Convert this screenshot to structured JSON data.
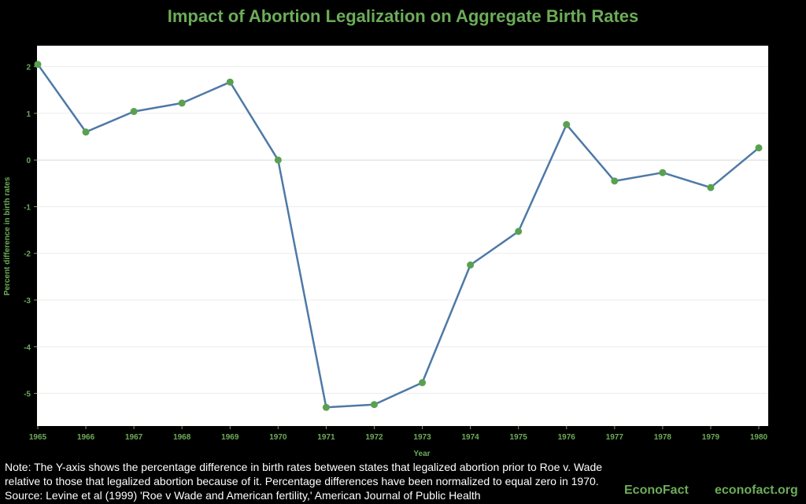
{
  "chart_data": {
    "type": "line",
    "title": "Impact of Abortion Legalization on Aggregate Birth Rates",
    "xlabel": "Year",
    "ylabel": "Percent difference in birth rates",
    "x": [
      "1965",
      "1966",
      "1967",
      "1968",
      "1969",
      "1970",
      "1971",
      "1972",
      "1973",
      "1974",
      "1975",
      "1976",
      "1977",
      "1978",
      "1979",
      "1980"
    ],
    "series": [
      {
        "name": "Percent difference in birth rates",
        "values": [
          2.05,
          0.6,
          1.04,
          1.22,
          1.67,
          0.0,
          -5.3,
          -5.24,
          -4.77,
          -2.25,
          -1.53,
          0.76,
          -0.45,
          -0.27,
          -0.59,
          0.26
        ]
      }
    ],
    "yticks": [
      2,
      1,
      0,
      -1,
      -2,
      -3,
      -4,
      -5
    ],
    "ylim": [
      -5.7,
      2.45
    ],
    "grid": true,
    "colors": {
      "line": "#4e79a7",
      "marker": "#59a14f",
      "text": "#6cac58"
    }
  },
  "note": {
    "line1": "Note: The Y-axis shows the percentage difference in birth rates between states that legalized abortion prior to Roe v. Wade",
    "line2": "relative to those that legalized abortion because of it. Percentage differences have been normalized to equal zero in 1970.",
    "line3": "Source: Levine et al (1999) 'Roe v Wade and American fertility,' American Journal of Public Health"
  },
  "brand": {
    "name": "EconoFact",
    "url": "econofact.org"
  }
}
